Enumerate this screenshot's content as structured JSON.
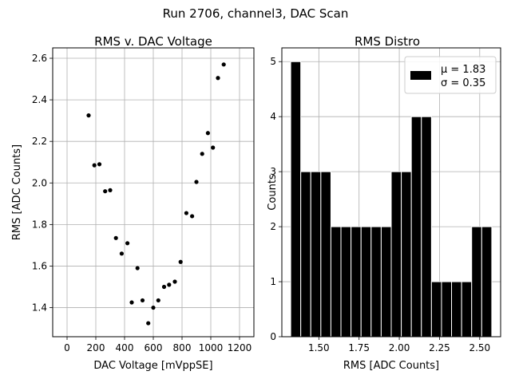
{
  "figure": {
    "suptitle": "Run 2706, channel3, DAC Scan"
  },
  "chart_data": [
    {
      "type": "scatter",
      "title": "RMS v. DAC Voltage",
      "xlabel": "DAC Voltage [mVppSE]",
      "ylabel": "RMS [ADC Counts]",
      "xlim": [
        -100,
        1300
      ],
      "ylim": [
        1.26,
        2.65
      ],
      "xticks": [
        "0",
        "200",
        "400",
        "600",
        "800",
        "1000",
        "1200"
      ],
      "yticks": [
        "1.4",
        "1.6",
        "1.8",
        "2.0",
        "2.2",
        "2.4",
        "2.6"
      ],
      "grid": true,
      "points": [
        {
          "x": 150,
          "y": 2.325
        },
        {
          "x": 190,
          "y": 2.085
        },
        {
          "x": 225,
          "y": 2.09
        },
        {
          "x": 265,
          "y": 1.96
        },
        {
          "x": 300,
          "y": 1.965
        },
        {
          "x": 340,
          "y": 1.735
        },
        {
          "x": 380,
          "y": 1.66
        },
        {
          "x": 420,
          "y": 1.71
        },
        {
          "x": 450,
          "y": 1.425
        },
        {
          "x": 490,
          "y": 1.59
        },
        {
          "x": 525,
          "y": 1.435
        },
        {
          "x": 565,
          "y": 1.325
        },
        {
          "x": 600,
          "y": 1.4
        },
        {
          "x": 635,
          "y": 1.435
        },
        {
          "x": 675,
          "y": 1.5
        },
        {
          "x": 710,
          "y": 1.51
        },
        {
          "x": 750,
          "y": 1.525
        },
        {
          "x": 790,
          "y": 1.62
        },
        {
          "x": 830,
          "y": 1.855
        },
        {
          "x": 870,
          "y": 1.84
        },
        {
          "x": 900,
          "y": 2.005
        },
        {
          "x": 940,
          "y": 2.14
        },
        {
          "x": 980,
          "y": 2.24
        },
        {
          "x": 1015,
          "y": 2.17
        },
        {
          "x": 1050,
          "y": 2.505
        },
        {
          "x": 1090,
          "y": 2.57
        }
      ],
      "marker_color": "#000000"
    },
    {
      "type": "bar",
      "title": "RMS Distro",
      "xlabel": "RMS [ADC Counts]",
      "ylabel": "Counts",
      "xlim": [
        1.27,
        2.63
      ],
      "ylim": [
        0,
        5.25
      ],
      "xticks": [
        "1.50",
        "1.75",
        "2.00",
        "2.25",
        "2.50"
      ],
      "yticks": [
        "0",
        "1",
        "2",
        "3",
        "4",
        "5"
      ],
      "grid": true,
      "bin_width": 0.0625,
      "bins": [
        {
          "x0": 1.325,
          "count": 5
        },
        {
          "x0": 1.3875,
          "count": 3
        },
        {
          "x0": 1.45,
          "count": 3
        },
        {
          "x0": 1.5125,
          "count": 3
        },
        {
          "x0": 1.575,
          "count": 2
        },
        {
          "x0": 1.6375,
          "count": 2
        },
        {
          "x0": 1.7,
          "count": 2
        },
        {
          "x0": 1.7625,
          "count": 2
        },
        {
          "x0": 1.825,
          "count": 2
        },
        {
          "x0": 1.8875,
          "count": 2
        },
        {
          "x0": 1.95,
          "count": 3
        },
        {
          "x0": 2.0125,
          "count": 3
        },
        {
          "x0": 2.075,
          "count": 4
        },
        {
          "x0": 2.1375,
          "count": 4
        },
        {
          "x0": 2.2,
          "count": 1
        },
        {
          "x0": 2.2625,
          "count": 1
        },
        {
          "x0": 2.325,
          "count": 1
        },
        {
          "x0": 2.3875,
          "count": 1
        },
        {
          "x0": 2.45,
          "count": 2
        },
        {
          "x0": 2.5125,
          "count": 2
        }
      ],
      "bar_color": "#000000",
      "edge_color": "#ffffff",
      "legend": {
        "placement": "top-right",
        "lines": [
          "μ = 1.83",
          "σ = 0.35"
        ]
      }
    }
  ]
}
